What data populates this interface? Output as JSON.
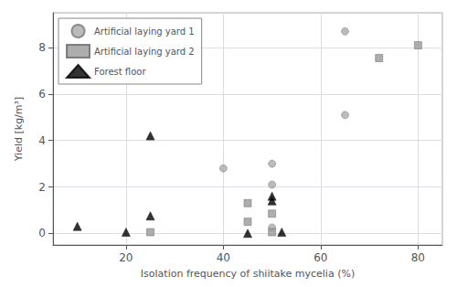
{
  "chart_data": {
    "type": "scatter",
    "xlabel": "Isolation frequency of shiitake mycelia (%)",
    "ylabel": "Yield [kg/m³]",
    "xlim": [
      5,
      85
    ],
    "ylim": [
      -0.5,
      9.5
    ],
    "xticks": [
      20,
      40,
      60,
      80
    ],
    "yticks": [
      0,
      2,
      4,
      6,
      8
    ],
    "grid": true,
    "legend": "upper left",
    "series": [
      {
        "name": "Artificial laying yard 1",
        "color": "#aaaaaa",
        "marker": "circle",
        "x": [
          40,
          50,
          50,
          50,
          65,
          65
        ],
        "values": [
          2.8,
          0.25,
          2.1,
          3.0,
          5.1,
          8.7
        ]
      },
      {
        "name": "Artificial laying yard 2",
        "color": "#999999",
        "marker": "square",
        "x": [
          25,
          45,
          45,
          50,
          50,
          72,
          80
        ],
        "values": [
          0.05,
          0.5,
          1.3,
          0.05,
          0.85,
          7.55,
          8.1
        ]
      },
      {
        "name": "Forest floor",
        "color": "#000000",
        "marker": "triangle",
        "x": [
          10,
          20,
          25,
          25,
          45,
          50,
          50,
          52
        ],
        "values": [
          0.3,
          0.05,
          0.75,
          4.2,
          0.0,
          1.6,
          1.4,
          0.05
        ]
      }
    ]
  }
}
